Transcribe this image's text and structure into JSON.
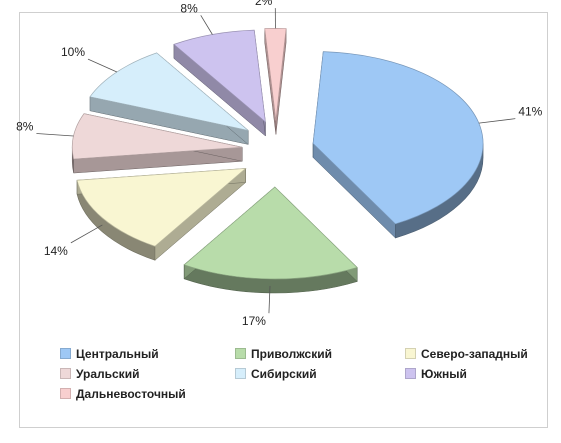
{
  "chart_data": {
    "type": "pie",
    "title": "",
    "series": [
      {
        "name": "Центральный",
        "value": 41,
        "label": "41%",
        "color": "#9ec8f5"
      },
      {
        "name": "Приволжский",
        "value": 17,
        "label": "17%",
        "color": "#b8dcaa"
      },
      {
        "name": "Северо-западный",
        "value": 14,
        "label": "14%",
        "color": "#f9f6d2"
      },
      {
        "name": "Уральский",
        "value": 8,
        "label": "8%",
        "color": "#eed8d8"
      },
      {
        "name": "Сибирский",
        "value": 10,
        "label": "10%",
        "color": "#d6eefb"
      },
      {
        "name": "Южный",
        "value": 8,
        "label": "8%",
        "color": "#cdc3ef"
      },
      {
        "name": "Дальневосточный",
        "value": 2,
        "label": "2%",
        "color": "#f8cfcf"
      }
    ],
    "legend_position": "bottom",
    "exploded": true,
    "style": "3d-pie"
  }
}
